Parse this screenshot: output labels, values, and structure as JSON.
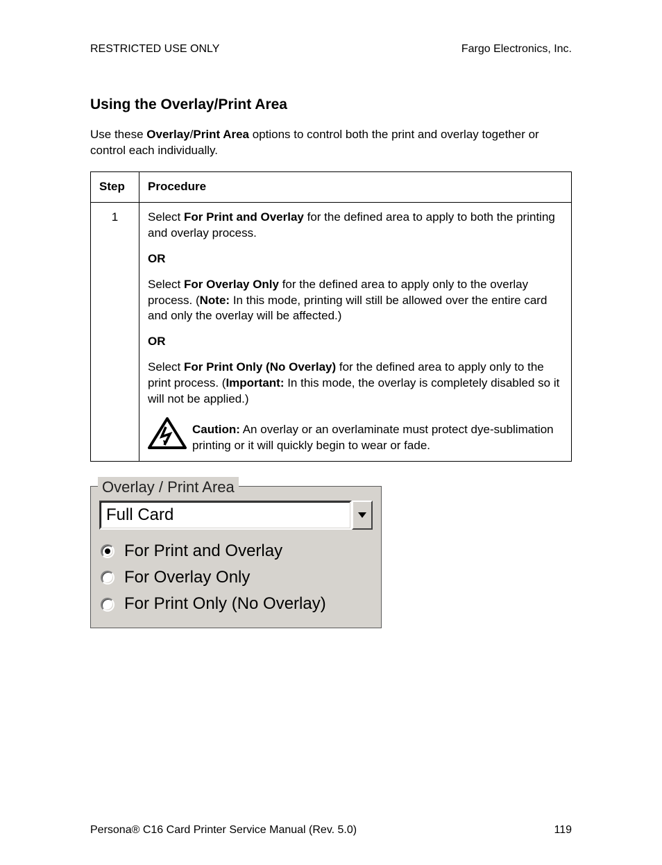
{
  "header": {
    "left": "RESTRICTED USE ONLY",
    "right": "Fargo Electronics, Inc."
  },
  "heading": "Using the Overlay/Print Area",
  "intro": {
    "pre": "Use these ",
    "bold1": "Overlay",
    "slash": "/",
    "bold2": "Print Area",
    "post": " options to control both the print and overlay together or control each individually."
  },
  "table": {
    "col_step": "Step",
    "col_proc": "Procedure",
    "step": "1",
    "p1": {
      "pre": "Select ",
      "b": "For Print and Overlay",
      "post": " for the defined area to apply to both the printing and overlay process."
    },
    "or1": "OR",
    "p2": {
      "pre": "Select ",
      "b": "For Overlay Only",
      "post": " for the defined area to apply only to the overlay process. (",
      "nb": "Note:",
      "note": "  In this mode, printing will still be allowed over the entire card and only the overlay will be affected.)"
    },
    "or2": "OR",
    "p3": {
      "pre": "Select ",
      "b": "For Print Only (No Overlay)",
      "post": " for the defined area to apply only to the print process. (",
      "ib": "Important:",
      "imp": "  In this mode, the overlay is completely disabled so it will not be applied.)"
    },
    "caution": {
      "b": "Caution:",
      "text": "  An overlay or an overlaminate must protect dye-sublimation printing or it will quickly begin to wear or fade."
    }
  },
  "ui": {
    "legend": "Overlay / Print Area",
    "dropdown_value": "Full Card",
    "radios": [
      {
        "label": "For Print and Overlay",
        "selected": true
      },
      {
        "label": "For Overlay Only",
        "selected": false
      },
      {
        "label": "For Print Only (No Overlay)",
        "selected": false
      }
    ]
  },
  "footer": {
    "left_pre": "Persona",
    "left_reg": "®",
    "left_post": " C16 Card Printer Service Manual (Rev. 5.0)",
    "page": "119"
  },
  "colors": {
    "ui_bg": "#d6d3ce",
    "text": "#000000"
  }
}
